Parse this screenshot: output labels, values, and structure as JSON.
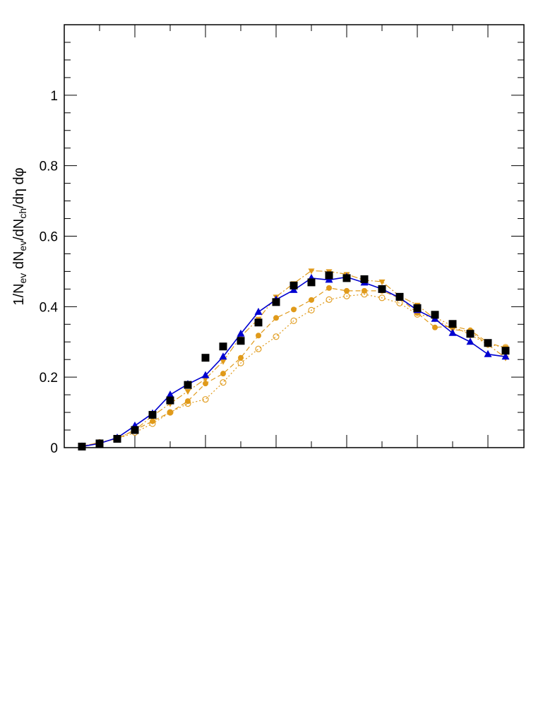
{
  "chart_data": {
    "type": "line",
    "title": "",
    "xlabel": "",
    "ylabel": "1/N_ev dN_ev/dN_ch/dη dφ",
    "ylabel_parts": {
      "p1": "1/N",
      "s1": "ev",
      "p2": " dN",
      "s2": "ev",
      "p3": "/dN",
      "s3": "ch",
      "p4": "/dη dφ"
    },
    "ylim": [
      0,
      1.2
    ],
    "x_points": 25,
    "y_ticks": [
      "0",
      "0.2",
      "0.4",
      "0.6",
      "0.8",
      "1"
    ],
    "y_tick_values": [
      0,
      0.2,
      0.4,
      0.6,
      0.8,
      1.0
    ],
    "grid": false,
    "legend": "none",
    "series": [
      {
        "marker": "square",
        "color": "#000000",
        "line": "none",
        "values": [
          0.003,
          0.012,
          0.025,
          0.05,
          0.093,
          0.134,
          0.178,
          0.255,
          0.287,
          0.303,
          0.355,
          0.413,
          0.46,
          0.469,
          0.489,
          0.481,
          0.478,
          0.45,
          0.428,
          0.396,
          0.377,
          0.351,
          0.323,
          0.297,
          0.275
        ]
      },
      {
        "marker": "triangle-up",
        "color": "#0000d0",
        "line": "solid",
        "values": [
          0.003,
          0.012,
          0.028,
          0.062,
          0.097,
          0.15,
          0.18,
          0.205,
          0.258,
          0.323,
          0.385,
          0.42,
          0.447,
          0.481,
          0.476,
          0.484,
          0.468,
          0.45,
          0.425,
          0.39,
          0.365,
          0.325,
          0.3,
          0.265,
          0.258
        ]
      },
      {
        "marker": "triangle-down",
        "color": "#e09a1a",
        "line": "dash-dot",
        "values": [
          0.004,
          0.015,
          0.025,
          0.05,
          0.09,
          0.125,
          0.16,
          0.195,
          0.245,
          0.315,
          0.365,
          0.428,
          0.466,
          0.502,
          0.5,
          0.492,
          0.475,
          0.471,
          0.43,
          0.405,
          0.365,
          0.335,
          0.33,
          0.292,
          0.255
        ]
      },
      {
        "marker": "circle-filled",
        "color": "#e09a1a",
        "line": "dashed",
        "values": [
          0.003,
          0.015,
          0.025,
          0.05,
          0.075,
          0.1,
          0.132,
          0.182,
          0.21,
          0.255,
          0.318,
          0.368,
          0.392,
          0.419,
          0.453,
          0.445,
          0.445,
          0.445,
          0.424,
          0.382,
          0.341,
          0.345,
          0.333,
          0.298,
          0.283
        ]
      },
      {
        "marker": "circle-open",
        "color": "#e09a1a",
        "line": "dotted",
        "values": [
          0.003,
          0.015,
          0.025,
          0.043,
          0.068,
          0.1,
          0.125,
          0.137,
          0.185,
          0.24,
          0.28,
          0.315,
          0.36,
          0.39,
          0.42,
          0.43,
          0.435,
          0.425,
          0.41,
          0.378,
          0.37,
          0.345,
          0.32,
          0.293,
          0.285
        ]
      }
    ]
  }
}
